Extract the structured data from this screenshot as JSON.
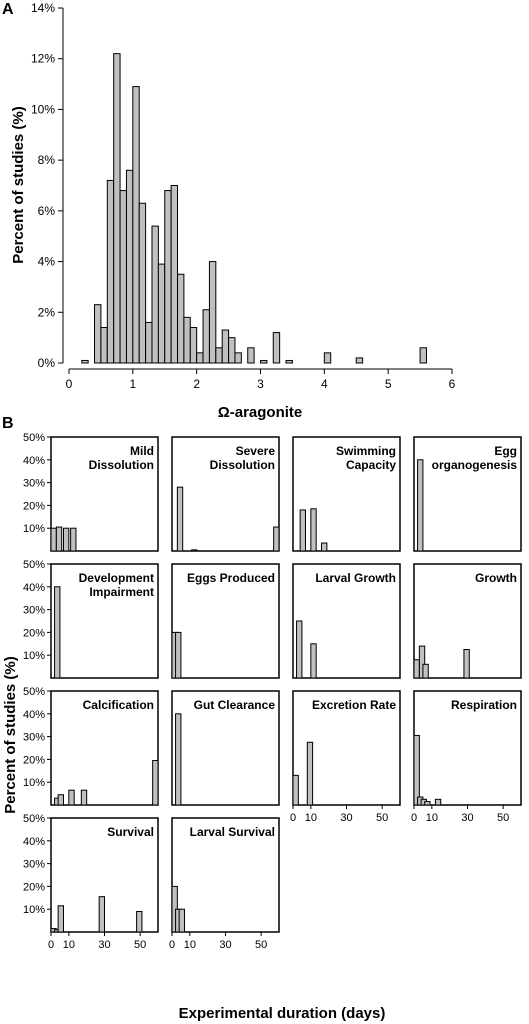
{
  "chart_data": [
    {
      "panel": "A",
      "type": "bar",
      "xlabel": "Ω-aragonite",
      "ylabel": "Percent of studies (%)",
      "xlim": [
        0,
        6
      ],
      "ylim": [
        0,
        14
      ],
      "x_ticks": [
        "0",
        "1",
        "2",
        "3",
        "4",
        "5",
        "6"
      ],
      "y_ticks": [
        "0%",
        "2%",
        "4%",
        "6%",
        "8%",
        "10%",
        "12%",
        "14%"
      ],
      "bin_width": 0.1,
      "bins": [
        {
          "x": 0.2,
          "y": 0.1
        },
        {
          "x": 0.4,
          "y": 2.3
        },
        {
          "x": 0.5,
          "y": 1.4
        },
        {
          "x": 0.6,
          "y": 7.2
        },
        {
          "x": 0.7,
          "y": 12.2
        },
        {
          "x": 0.8,
          "y": 6.8
        },
        {
          "x": 0.9,
          "y": 7.6
        },
        {
          "x": 1.0,
          "y": 10.9
        },
        {
          "x": 1.1,
          "y": 6.3
        },
        {
          "x": 1.2,
          "y": 1.6
        },
        {
          "x": 1.3,
          "y": 5.4
        },
        {
          "x": 1.4,
          "y": 3.9
        },
        {
          "x": 1.5,
          "y": 6.8
        },
        {
          "x": 1.6,
          "y": 7.0
        },
        {
          "x": 1.7,
          "y": 3.5
        },
        {
          "x": 1.8,
          "y": 1.8
        },
        {
          "x": 1.9,
          "y": 1.4
        },
        {
          "x": 2.0,
          "y": 0.4
        },
        {
          "x": 2.1,
          "y": 2.1
        },
        {
          "x": 2.2,
          "y": 4.0
        },
        {
          "x": 2.3,
          "y": 0.6
        },
        {
          "x": 2.4,
          "y": 1.3
        },
        {
          "x": 2.5,
          "y": 1.0
        },
        {
          "x": 2.6,
          "y": 0.4
        },
        {
          "x": 2.8,
          "y": 0.6
        },
        {
          "x": 3.0,
          "y": 0.1
        },
        {
          "x": 3.2,
          "y": 1.2
        },
        {
          "x": 3.4,
          "y": 0.1
        },
        {
          "x": 4.0,
          "y": 0.4
        },
        {
          "x": 4.5,
          "y": 0.2
        },
        {
          "x": 5.5,
          "y": 0.6
        }
      ]
    },
    {
      "panel": "B",
      "type": "bar",
      "xlabel": "Experimental duration (days)",
      "ylabel": "Percent of studies (%)",
      "xlim": [
        0,
        60
      ],
      "ylim": [
        0,
        50
      ],
      "x_ticks": [
        "0",
        "10",
        "30",
        "50"
      ],
      "y_ticks": [
        "10%",
        "20%",
        "30%",
        "40%",
        "50%"
      ],
      "bin_width": 3,
      "subplots": [
        {
          "title": "Mild Dissolution",
          "bars": [
            {
              "x": 0,
              "y": 10
            },
            {
              "x": 3,
              "y": 10.5
            },
            {
              "x": 7,
              "y": 10
            },
            {
              "x": 11,
              "y": 10
            }
          ]
        },
        {
          "title": "Severe Dissolution",
          "bars": [
            {
              "x": 3,
              "y": 28
            },
            {
              "x": 11,
              "y": 0.5
            },
            {
              "x": 57,
              "y": 10.5
            }
          ]
        },
        {
          "title": "Swimming Capacity",
          "bars": [
            {
              "x": 4,
              "y": 18
            },
            {
              "x": 10,
              "y": 18.5
            },
            {
              "x": 16,
              "y": 3.5
            }
          ]
        },
        {
          "title": "Egg organogenesis",
          "bars": [
            {
              "x": 2,
              "y": 40
            }
          ]
        },
        {
          "title": "Development Impairment",
          "bars": [
            {
              "x": 2,
              "y": 40
            }
          ]
        },
        {
          "title": "Eggs Produced",
          "bars": [
            {
              "x": 0,
              "y": 20
            },
            {
              "x": 2,
              "y": 20
            }
          ]
        },
        {
          "title": "Larval Growth",
          "bars": [
            {
              "x": 2,
              "y": 25
            },
            {
              "x": 10,
              "y": 15
            }
          ]
        },
        {
          "title": "Growth",
          "bars": [
            {
              "x": 0,
              "y": 8
            },
            {
              "x": 3,
              "y": 14
            },
            {
              "x": 5,
              "y": 6
            },
            {
              "x": 28,
              "y": 12.5
            }
          ]
        },
        {
          "title": "Calcification",
          "bars": [
            {
              "x": 2,
              "y": 3
            },
            {
              "x": 4,
              "y": 4.5
            },
            {
              "x": 10,
              "y": 6.5
            },
            {
              "x": 17,
              "y": 6.5
            },
            {
              "x": 57,
              "y": 19.5
            }
          ]
        },
        {
          "title": "Gut Clearance",
          "bars": [
            {
              "x": 2,
              "y": 40
            }
          ]
        },
        {
          "title": "Excretion Rate",
          "bars": [
            {
              "x": 0,
              "y": 13
            },
            {
              "x": 8,
              "y": 27.5
            }
          ]
        },
        {
          "title": "Respiration",
          "bars": [
            {
              "x": 0,
              "y": 30.5
            },
            {
              "x": 2,
              "y": 3.5
            },
            {
              "x": 4,
              "y": 2.5
            },
            {
              "x": 6,
              "y": 1.5
            },
            {
              "x": 12,
              "y": 2.5
            }
          ]
        },
        {
          "title": "Survival",
          "bars": [
            {
              "x": 0,
              "y": 1.5
            },
            {
              "x": 2,
              "y": 1
            },
            {
              "x": 4,
              "y": 11.5
            },
            {
              "x": 27,
              "y": 15.5
            },
            {
              "x": 48,
              "y": 9
            }
          ]
        },
        {
          "title": "Larval Survival",
          "bars": [
            {
              "x": 0,
              "y": 20
            },
            {
              "x": 2,
              "y": 10
            },
            {
              "x": 4,
              "y": 10
            }
          ]
        }
      ]
    }
  ]
}
